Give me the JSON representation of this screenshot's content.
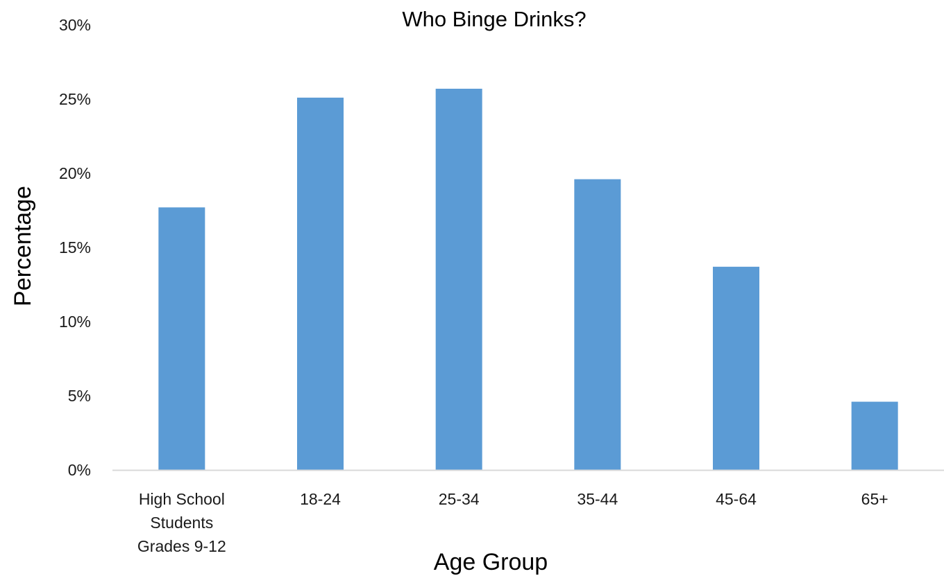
{
  "chart_data": {
    "type": "bar",
    "title": "Who Binge Drinks?",
    "xlabel": "Age Group",
    "ylabel": "Percentage",
    "categories": [
      [
        "High School",
        "Students",
        "Grades 9-12"
      ],
      [
        "18-24"
      ],
      [
        "25-34"
      ],
      [
        "35-44"
      ],
      [
        "45-64"
      ],
      [
        "65+"
      ]
    ],
    "values": [
      17.7,
      25.1,
      25.7,
      19.6,
      13.7,
      4.6
    ],
    "ylim": [
      0,
      30
    ],
    "yticks": [
      "0%",
      "5%",
      "10%",
      "15%",
      "20%",
      "25%",
      "30%"
    ],
    "grid": false,
    "legend": "none",
    "bar_color": "#5b9bd5",
    "axis_color": "#d9d9d9"
  }
}
